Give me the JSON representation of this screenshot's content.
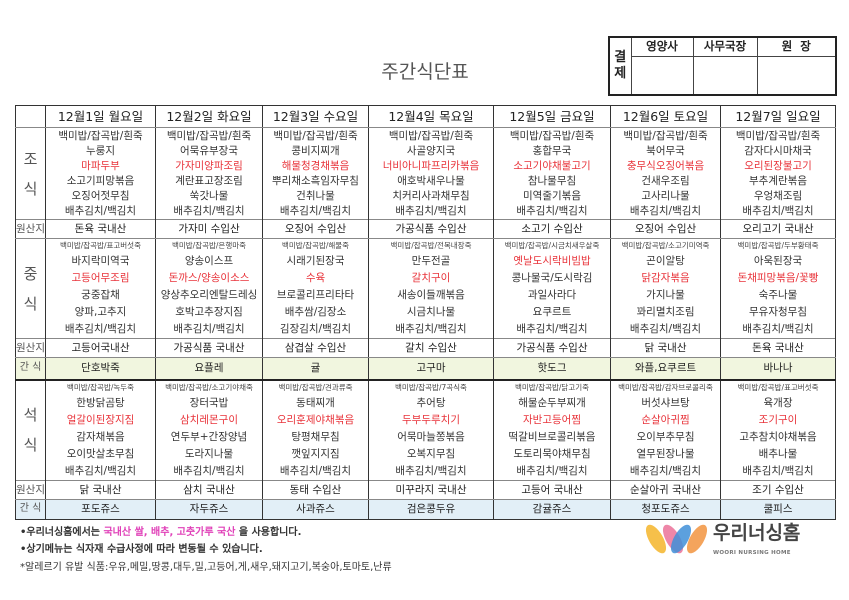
{
  "title": "주간식단표",
  "approval": {
    "label": "결\n제",
    "label_top": "결",
    "label_bottom": "제",
    "roles": [
      "영양사",
      "사무국장",
      "원  장"
    ]
  },
  "row_labels": {
    "breakfast": [
      "조",
      "식"
    ],
    "lunch": [
      "중",
      "식"
    ],
    "dinner": [
      "석",
      "식"
    ],
    "origin": "원산지",
    "snack": "간  식"
  },
  "colors": {
    "highlight": "#e8333a",
    "lunch_snack_bg": "#f1f6df",
    "dinner_snack_bg": "#e2eff7",
    "notice_pink": "#e040b8"
  },
  "days": [
    {
      "header": "12월1일 월요일",
      "breakfast": {
        "items": [
          "백미밥/잡곡밥/흰죽",
          "누룽지",
          "마파두부",
          "소고기피망볶음",
          "오징어젓무침",
          "배추김치/백김치"
        ],
        "highlight": 2,
        "origin": "돈육 국내산"
      },
      "lunch": {
        "porridge": "백미밥/잡곡밥/표고버섯죽",
        "items": [
          "바지락미역국",
          "고등어무조림",
          "궁중잡채",
          "양파,고추지",
          "배추김치/백김치"
        ],
        "highlight": 1,
        "origin": "고등어국내산",
        "snack": "단호박죽"
      },
      "dinner": {
        "porridge": "백미밥/잡곡밥/녹두죽",
        "items": [
          "한방닭곰탕",
          "얼갈이된장지짐",
          "감자채볶음",
          "오이맛살초무침",
          "배추김치/백김치"
        ],
        "highlight": 1,
        "origin": "닭 국내산",
        "snack": "포도쥬스"
      }
    },
    {
      "header": "12월2일 화요일",
      "breakfast": {
        "items": [
          "백미밥/잡곡밥/흰죽",
          "어묵유부장국",
          "가자미양파조림",
          "계란표고장조림",
          "쑥갓나물",
          "배추김치/백김치"
        ],
        "highlight": 2,
        "origin": "가자미 수입산"
      },
      "lunch": {
        "porridge": "백미밥/잡곡밥/은행마죽",
        "items": [
          "양송이스프",
          "돈까스/양송이소스",
          "양상추오리엔탈드레싱",
          "호박고추장지짐",
          "배추김치/백김치"
        ],
        "highlight": 1,
        "origin": "가공식품 국내산",
        "snack": "요플레"
      },
      "dinner": {
        "porridge": "백미밥/잡곡밥/소고기야채죽",
        "items": [
          "장터국밥",
          "삼치레몬구이",
          "연두부+간장양념",
          "도라지나물",
          "배추김치/백김치"
        ],
        "highlight": 1,
        "origin": "삼치 국내산",
        "snack": "자두쥬스"
      }
    },
    {
      "header": "12월3일 수요일",
      "breakfast": {
        "items": [
          "백미밥/잡곡밥/흰죽",
          "콩비지찌개",
          "해물청경채볶음",
          "뿌리채소흑임자무침",
          "건취나물",
          "배추김치/백김치"
        ],
        "highlight": 2,
        "origin": "오징어 수입산"
      },
      "lunch": {
        "porridge": "백미밥/잡곡밥/해물죽",
        "items": [
          "시래기된장국",
          "수육",
          "브로콜리프리타타",
          "배추쌈/김장소",
          "김장김치/백김치"
        ],
        "highlight": 1,
        "origin": "삼겹살 수입산",
        "snack": "귤"
      },
      "dinner": {
        "porridge": "백미밥/잡곡밥/견과류죽",
        "items": [
          "동태찌개",
          "오리훈제야채볶음",
          "탕평채무침",
          "깻잎지지짐",
          "배추김치/백김치"
        ],
        "highlight": 1,
        "origin": "동태 수입산",
        "snack": "사과쥬스"
      }
    },
    {
      "header": "12월4일 목요일",
      "breakfast": {
        "items": [
          "백미밥/잡곡밥/흰죽",
          "사골양지국",
          "너비아니파프리카볶음",
          "애호박새우나물",
          "치커리사과채무침",
          "배추김치/백김치"
        ],
        "highlight": 2,
        "origin": "가공식품 수입산"
      },
      "lunch": {
        "porridge": "백미밥/잡곡밥/전복내장죽",
        "items": [
          "만두전골",
          "갈치구이",
          "새송이들깨볶음",
          "시금치나물",
          "배추김치/백김치"
        ],
        "highlight": 1,
        "origin": "갈치 수입산",
        "snack": "고구마"
      },
      "dinner": {
        "porridge": "백미밥/잡곡밥/7곡식죽",
        "items": [
          "추어탕",
          "두부두루치기",
          "어묵마늘쫑볶음",
          "오복지무침",
          "배추김치/백김치"
        ],
        "highlight": 1,
        "origin": "미꾸라지 국내산",
        "snack": "검은콩두유"
      }
    },
    {
      "header": "12월5일 금요일",
      "breakfast": {
        "items": [
          "백미밥/잡곡밥/흰죽",
          "홍합무국",
          "소고기야채불고기",
          "참나물무침",
          "미역줄기볶음",
          "배추김치/백김치"
        ],
        "highlight": 2,
        "origin": "소고기 수입산"
      },
      "lunch": {
        "porridge": "백미밥/잡곡밥/시금치새우살죽",
        "items": [
          "옛날도시락비빔밥",
          "콩나물국/도시락김",
          "과일사라다",
          "요쿠르트",
          "배추김치/백김치"
        ],
        "highlight": 0,
        "origin": "가공식품 수입산",
        "snack": "핫도그"
      },
      "dinner": {
        "porridge": "백미밥/잡곡밥/닭고기죽",
        "items": [
          "해물순두부찌개",
          "자반고등어찜",
          "떡갈비브로콜리볶음",
          "도토리묵야채무침",
          "배추김치/백김치"
        ],
        "highlight": 1,
        "origin": "고등어 국내산",
        "snack": "감귤쥬스"
      }
    },
    {
      "header": "12월6일 토요일",
      "breakfast": {
        "items": [
          "백미밥/잡곡밥/흰죽",
          "북어무국",
          "충무식오징어볶음",
          "건새우조림",
          "고사리나물",
          "배추김치/백김치"
        ],
        "highlight": 2,
        "origin": "오징어 수입산"
      },
      "lunch": {
        "porridge": "백미밥/잡곡밥/소고기미역죽",
        "items": [
          "곤이알탕",
          "닭감자볶음",
          "가지나물",
          "꽈리멸치조림",
          "배추김치/백김치"
        ],
        "highlight": 1,
        "origin": "닭 국내산",
        "snack": "와플,요쿠르트"
      },
      "dinner": {
        "porridge": "백미밥/잡곡밥/감자브로콜리죽",
        "items": [
          "버섯샤브탕",
          "순살아귀찜",
          "오이부추무침",
          "열무된장나물",
          "배추김치/백김치"
        ],
        "highlight": 1,
        "origin": "순살아귀 국내산",
        "snack": "청포도쥬스"
      }
    },
    {
      "header": "12월7일 일요일",
      "breakfast": {
        "items": [
          "백미밥/잡곡밥/흰죽",
          "감자다시마채국",
          "오리된장불고기",
          "부추계란볶음",
          "우엉채조림",
          "배추김치/백김치"
        ],
        "highlight": 2,
        "origin": "오리고기 국내산"
      },
      "lunch": {
        "porridge": "백미밥/잡곡밥/두부황태죽",
        "items": [
          "아욱된장국",
          "돈채피망볶음/꽃빵",
          "숙주나물",
          "무유자청무침",
          "배추김치/백김치"
        ],
        "highlight": 1,
        "origin": "돈육 국내산",
        "snack": "바나나"
      },
      "dinner": {
        "porridge": "백미밥/잡곡밥/표고버섯죽",
        "items": [
          "육개장",
          "조기구이",
          "고추참치야채볶음",
          "배추나물",
          "배추김치/백김치"
        ],
        "highlight": 1,
        "origin": "조기 수입산",
        "snack": "쿨피스"
      }
    }
  ],
  "footer": {
    "notice1_pre": "•우리너싱홈에서는 ",
    "notice1_pink": "국내산 쌀, 배추, 고춧가루 국산",
    "notice1_post": " 을 사용합니다.",
    "notice2": "•상기메뉴는 식자재 수급사정에 따라 변동될 수 있습니다.",
    "allergy": "*알레르기 유발 식품:우유,메밀,땅콩,대두,밀,고등어,게,새우,돼지고기,복숭아,토마토,난류"
  },
  "logo": {
    "name": "우리너싱홈",
    "subtitle": "WOORI NURSING HOME"
  }
}
